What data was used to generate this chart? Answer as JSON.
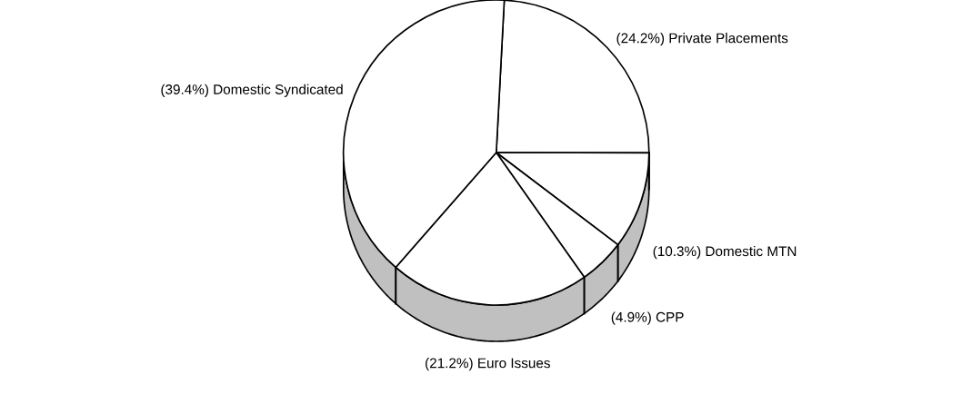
{
  "chart_data": {
    "type": "pie",
    "categories": [
      "Private Placements",
      "Domestic MTN",
      "CPP",
      "Euro Issues",
      "Domestic Syndicated"
    ],
    "values": [
      24.2,
      10.3,
      4.9,
      21.2,
      39.4
    ],
    "value_labels": [
      "(24.2%)",
      "(10.3%)",
      "(4.9%)",
      "(21.2%)",
      "(39.4%)"
    ],
    "colors": [
      "#ffffff",
      "#ffffff",
      "#ffffff",
      "#ffffff",
      "#ffffff"
    ],
    "legend": false
  }
}
